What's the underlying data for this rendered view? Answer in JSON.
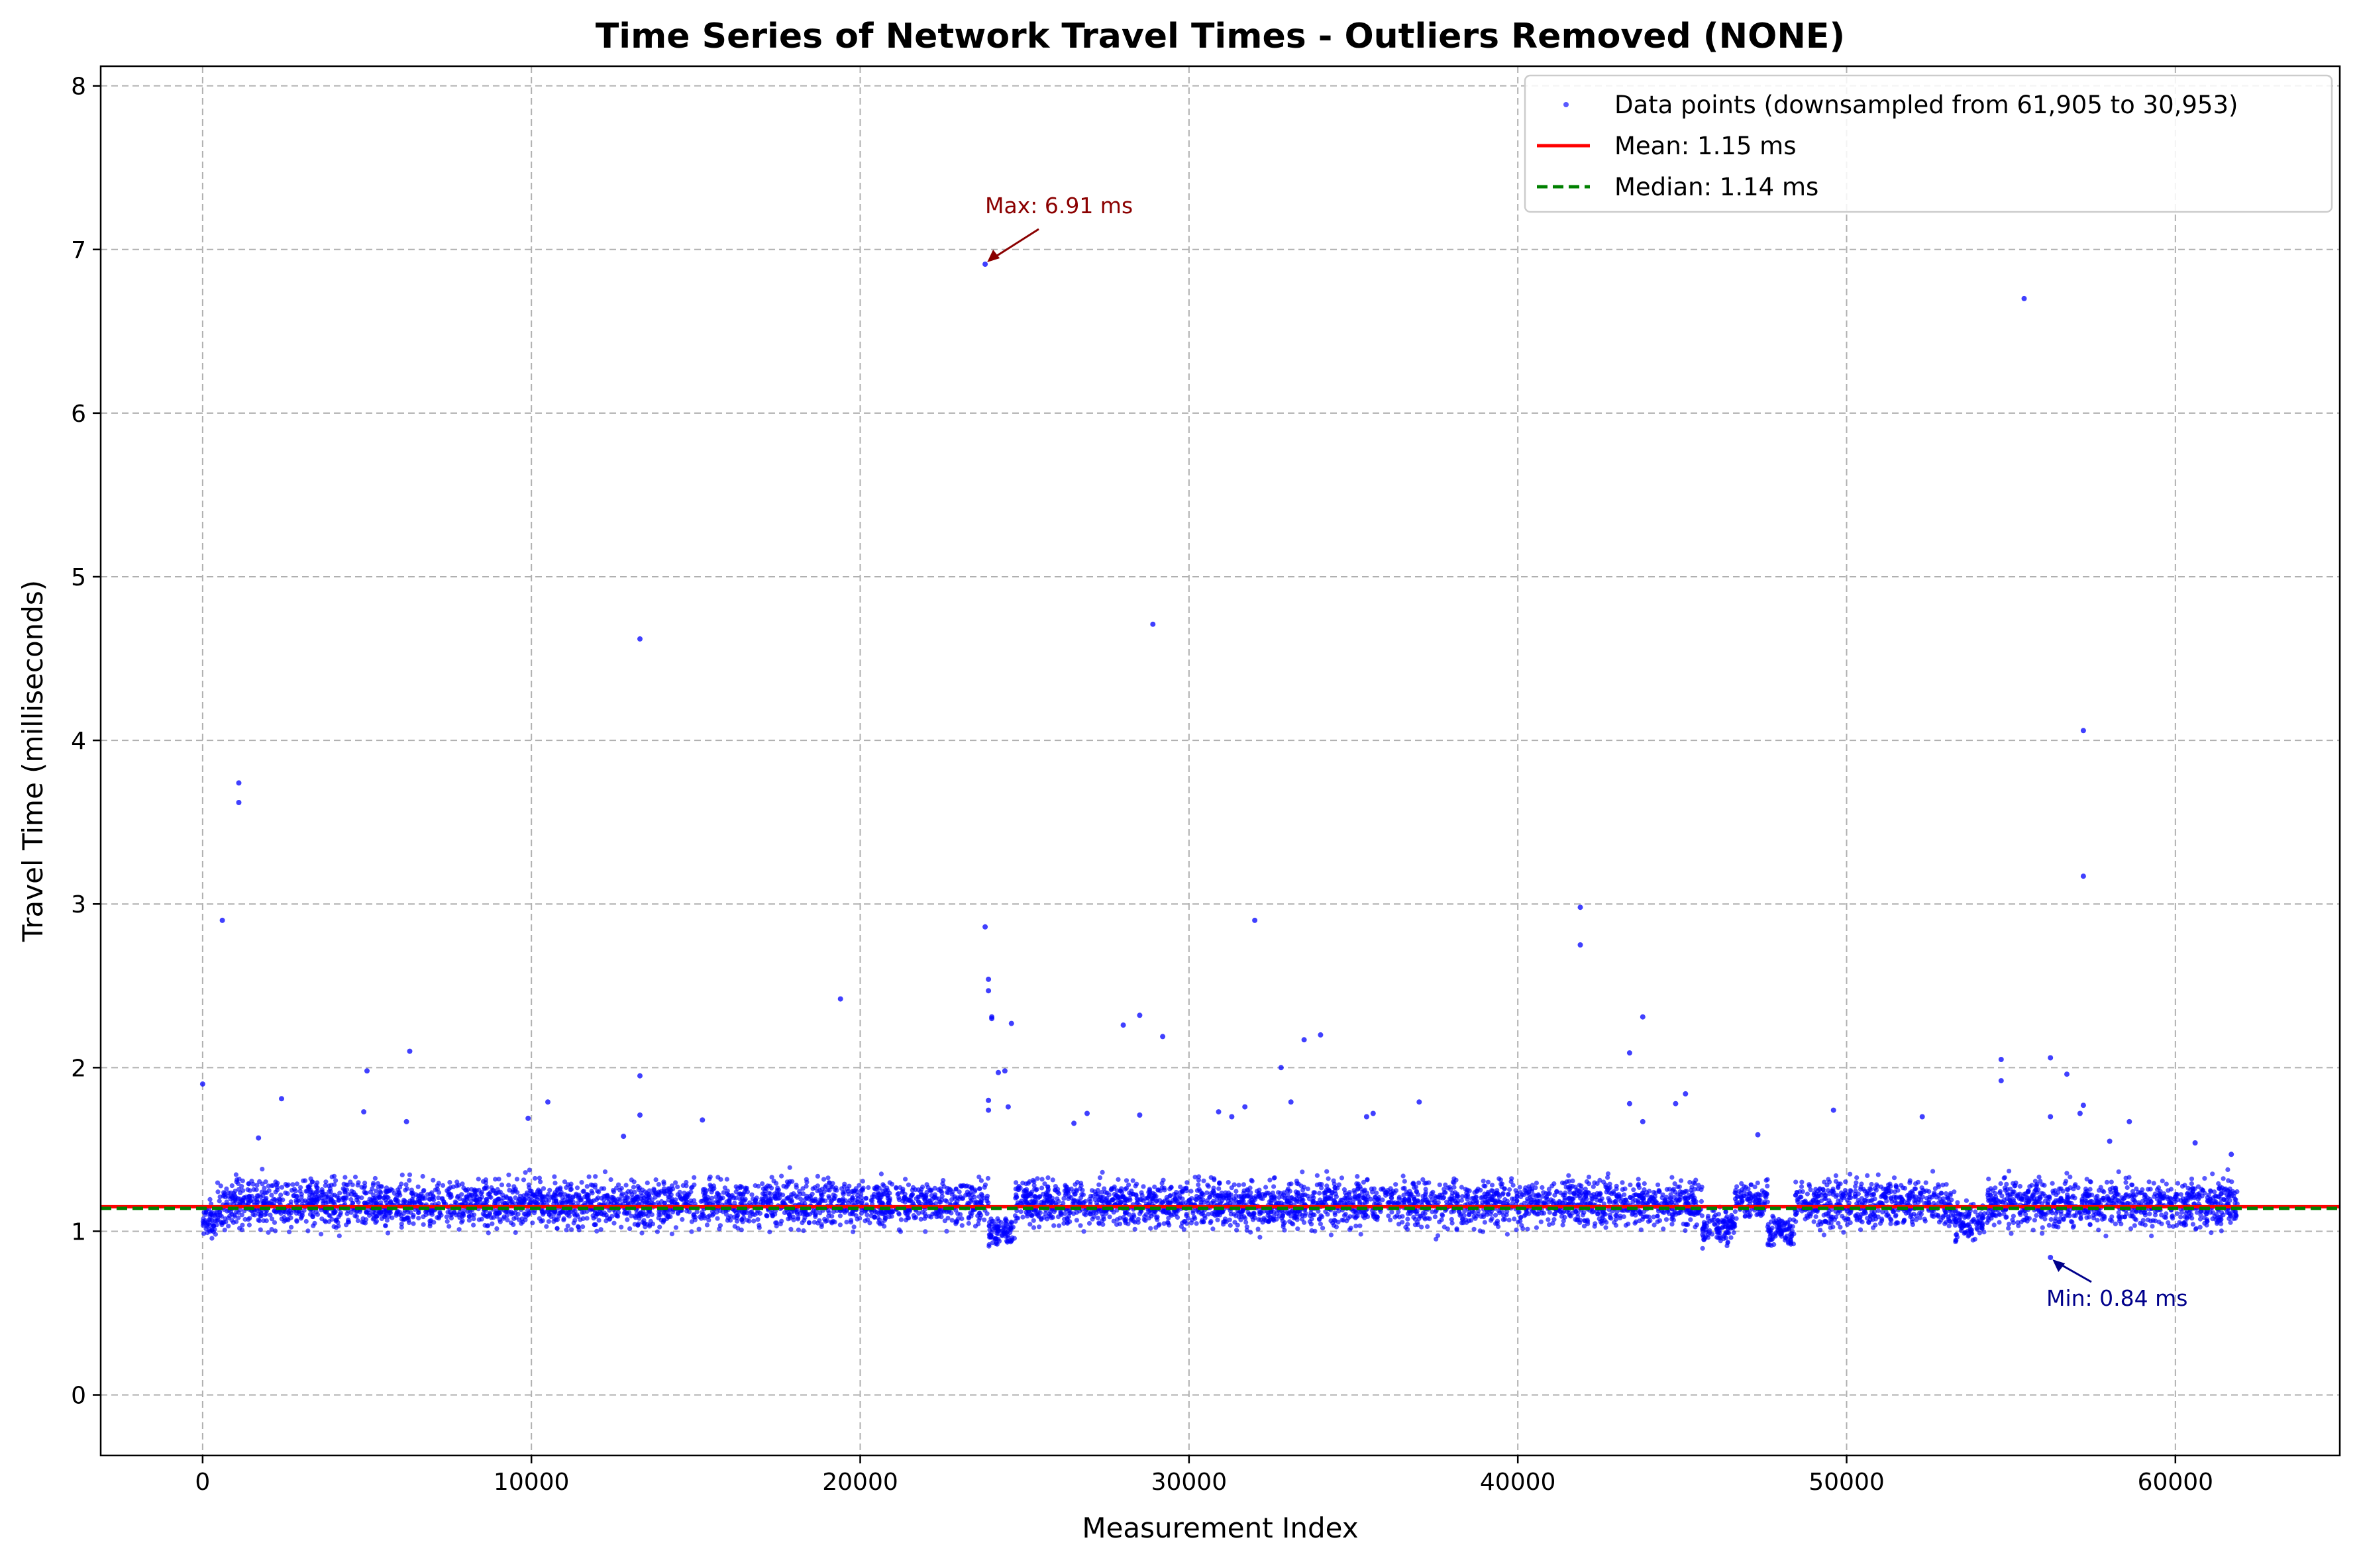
{
  "chart_data": {
    "type": "scatter",
    "title": "Time Series of Network Travel Times - Outliers Removed (NONE)",
    "xlabel": "Measurement Index",
    "ylabel": "Travel Time (milliseconds)",
    "xlim": [
      -3100,
      65000
    ],
    "ylim": [
      -0.37,
      8.12
    ],
    "xticks": [
      0,
      10000,
      20000,
      30000,
      40000,
      50000,
      60000
    ],
    "yticks": [
      0,
      1,
      2,
      3,
      4,
      5,
      6,
      7,
      8
    ],
    "grid": true,
    "legend_position": "top-right",
    "series": [
      {
        "name": "Data points (downsampled from 61,905 to 30,953)",
        "kind": "scatter",
        "color": "#0000ff",
        "outliers": [
          {
            "x": 0,
            "y": 1.9
          },
          {
            "x": 600,
            "y": 2.9
          },
          {
            "x": 1100,
            "y": 3.74
          },
          {
            "x": 1100,
            "y": 3.62
          },
          {
            "x": 1700,
            "y": 1.57
          },
          {
            "x": 2400,
            "y": 1.81
          },
          {
            "x": 4900,
            "y": 1.73
          },
          {
            "x": 5000,
            "y": 1.98
          },
          {
            "x": 6200,
            "y": 1.67
          },
          {
            "x": 6300,
            "y": 2.1
          },
          {
            "x": 9900,
            "y": 1.69
          },
          {
            "x": 10500,
            "y": 1.79
          },
          {
            "x": 12800,
            "y": 1.58
          },
          {
            "x": 13300,
            "y": 4.62
          },
          {
            "x": 13300,
            "y": 1.95
          },
          {
            "x": 13300,
            "y": 1.71
          },
          {
            "x": 15200,
            "y": 1.68
          },
          {
            "x": 19400,
            "y": 2.42
          },
          {
            "x": 23800,
            "y": 6.91
          },
          {
            "x": 23800,
            "y": 2.86
          },
          {
            "x": 23900,
            "y": 2.54
          },
          {
            "x": 23900,
            "y": 2.47
          },
          {
            "x": 24000,
            "y": 2.3
          },
          {
            "x": 24000,
            "y": 2.31
          },
          {
            "x": 23900,
            "y": 1.8
          },
          {
            "x": 23900,
            "y": 1.74
          },
          {
            "x": 24200,
            "y": 1.97
          },
          {
            "x": 24400,
            "y": 1.98
          },
          {
            "x": 24600,
            "y": 2.27
          },
          {
            "x": 24500,
            "y": 1.76
          },
          {
            "x": 26500,
            "y": 1.66
          },
          {
            "x": 26900,
            "y": 1.72
          },
          {
            "x": 28000,
            "y": 2.26
          },
          {
            "x": 28500,
            "y": 2.32
          },
          {
            "x": 28500,
            "y": 1.71
          },
          {
            "x": 28900,
            "y": 4.71
          },
          {
            "x": 29200,
            "y": 2.19
          },
          {
            "x": 30900,
            "y": 1.73
          },
          {
            "x": 31300,
            "y": 1.7
          },
          {
            "x": 31700,
            "y": 1.76
          },
          {
            "x": 32000,
            "y": 2.9
          },
          {
            "x": 32800,
            "y": 2.0
          },
          {
            "x": 33100,
            "y": 1.79
          },
          {
            "x": 33500,
            "y": 2.17
          },
          {
            "x": 34000,
            "y": 2.2
          },
          {
            "x": 35400,
            "y": 1.7
          },
          {
            "x": 35600,
            "y": 1.72
          },
          {
            "x": 37000,
            "y": 1.79
          },
          {
            "x": 41900,
            "y": 2.98
          },
          {
            "x": 41900,
            "y": 2.75
          },
          {
            "x": 43400,
            "y": 2.09
          },
          {
            "x": 43400,
            "y": 1.78
          },
          {
            "x": 43800,
            "y": 2.31
          },
          {
            "x": 43800,
            "y": 1.67
          },
          {
            "x": 44800,
            "y": 1.78
          },
          {
            "x": 45100,
            "y": 1.84
          },
          {
            "x": 47300,
            "y": 1.59
          },
          {
            "x": 49600,
            "y": 1.74
          },
          {
            "x": 52300,
            "y": 1.7
          },
          {
            "x": 54700,
            "y": 2.05
          },
          {
            "x": 54700,
            "y": 1.92
          },
          {
            "x": 55400,
            "y": 6.7
          },
          {
            "x": 56200,
            "y": 2.06
          },
          {
            "x": 56200,
            "y": 1.7
          },
          {
            "x": 56700,
            "y": 1.96
          },
          {
            "x": 57100,
            "y": 1.72
          },
          {
            "x": 57200,
            "y": 4.06
          },
          {
            "x": 57200,
            "y": 3.17
          },
          {
            "x": 57200,
            "y": 1.77
          },
          {
            "x": 58000,
            "y": 1.55
          },
          {
            "x": 58600,
            "y": 1.67
          },
          {
            "x": 60600,
            "y": 1.54
          },
          {
            "x": 61700,
            "y": 1.47
          },
          {
            "x": 56200,
            "y": 0.84
          }
        ],
        "segments": [
          {
            "x0": 0,
            "x1": 450,
            "center": 1.06,
            "spread": 0.09
          },
          {
            "x0": 450,
            "x1": 23900,
            "center": 1.17,
            "spread": 0.13
          },
          {
            "x0": 23900,
            "x1": 24700,
            "center": 1.0,
            "spread": 0.07
          },
          {
            "x0": 24700,
            "x1": 45600,
            "center": 1.17,
            "spread": 0.13
          },
          {
            "x0": 45600,
            "x1": 46600,
            "center": 1.03,
            "spread": 0.09
          },
          {
            "x0": 46600,
            "x1": 47600,
            "center": 1.19,
            "spread": 0.1
          },
          {
            "x0": 47600,
            "x1": 48400,
            "center": 1.0,
            "spread": 0.08
          },
          {
            "x0": 48400,
            "x1": 53300,
            "center": 1.17,
            "spread": 0.13
          },
          {
            "x0": 53300,
            "x1": 54200,
            "center": 1.05,
            "spread": 0.09
          },
          {
            "x0": 54200,
            "x1": 61900,
            "center": 1.17,
            "spread": 0.13
          }
        ]
      },
      {
        "name": "Mean: 1.15 ms",
        "kind": "hline",
        "value": 1.15,
        "color": "#ff0000",
        "style": "solid"
      },
      {
        "name": "Median: 1.14 ms",
        "kind": "hline",
        "value": 1.14,
        "color": "#008000",
        "style": "dashed"
      }
    ],
    "annotations": [
      {
        "text": "Max: 6.91 ms",
        "point": {
          "x": 23800,
          "y": 6.91
        },
        "color": "#8b0000"
      },
      {
        "text": "Min: 0.84 ms",
        "point": {
          "x": 56200,
          "y": 0.84
        },
        "color": "#00008b"
      }
    ]
  }
}
